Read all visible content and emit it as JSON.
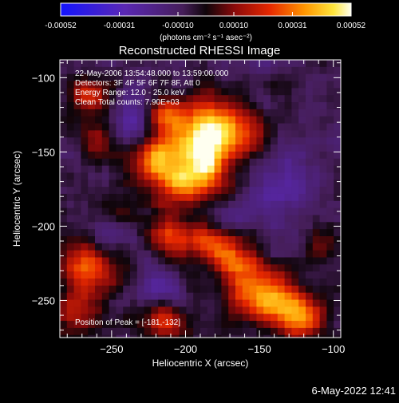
{
  "chart_data": {
    "type": "heatmap",
    "title": "Reconstructed RHESSI Image",
    "xlabel": "Heliocentric X (arcsec)",
    "ylabel": "Heliocentric Y (arcsec)",
    "xlim": [
      -285,
      -95
    ],
    "ylim": [
      -275,
      -88
    ],
    "x_ticks": [
      -250,
      -200,
      -150,
      -100
    ],
    "y_ticks": [
      -100,
      -150,
      -200,
      -250
    ],
    "colorbar": {
      "ticks": [
        "-0.00052",
        "-0.00031",
        "-0.00010",
        "0.00010",
        "0.00031",
        "0.00052"
      ],
      "range": [
        -0.00052,
        0.00052
      ],
      "unit_label": "(photons cm⁻² s⁻¹ asec⁻²)"
    },
    "annotations": [
      "22-May-2006 13:54:48.000 to 13:59:00.000",
      "Detectors: 3F 4F 5F 6F 7F 8F, Att 0",
      "Energy Range: 12.0 - 25.0 keV",
      "Clean     Total counts: 7.90E+03"
    ],
    "peak_label": "Position of Peak = [-181,-132]",
    "peak": {
      "x": -181,
      "y": -132
    },
    "sources": [
      {
        "x": -181,
        "y": -132,
        "sx": 14,
        "sy": 12,
        "amp": 1.0
      },
      {
        "x": -212,
        "y": -127,
        "sx": 10,
        "sy": 9,
        "amp": 0.75
      },
      {
        "x": -195,
        "y": -148,
        "sx": 16,
        "sy": 9,
        "amp": 0.55
      },
      {
        "x": -222,
        "y": -153,
        "sx": 10,
        "sy": 10,
        "amp": 0.6
      },
      {
        "x": -200,
        "y": -170,
        "sx": 16,
        "sy": 11,
        "amp": 0.8
      },
      {
        "x": -185,
        "y": -158,
        "sx": 10,
        "sy": 9,
        "amp": 0.55
      },
      {
        "x": -158,
        "y": -140,
        "sx": 9,
        "sy": 9,
        "amp": 0.4
      },
      {
        "x": -265,
        "y": -112,
        "sx": 10,
        "sy": 10,
        "amp": 0.45
      },
      {
        "x": -257,
        "y": -143,
        "sx": 9,
        "sy": 9,
        "amp": 0.38
      },
      {
        "x": -210,
        "y": -208,
        "sx": 9,
        "sy": 9,
        "amp": 0.5
      },
      {
        "x": -182,
        "y": -212,
        "sx": 12,
        "sy": 10,
        "amp": 0.6
      },
      {
        "x": -165,
        "y": -225,
        "sx": 10,
        "sy": 9,
        "amp": 0.5
      },
      {
        "x": -150,
        "y": -245,
        "sx": 14,
        "sy": 12,
        "amp": 0.85
      },
      {
        "x": -128,
        "y": -257,
        "sx": 10,
        "sy": 10,
        "amp": 0.65
      },
      {
        "x": -265,
        "y": -228,
        "sx": 12,
        "sy": 13,
        "amp": 0.7
      },
      {
        "x": -275,
        "y": -258,
        "sx": 9,
        "sy": 10,
        "amp": 0.45
      },
      {
        "x": -215,
        "y": -262,
        "sx": 13,
        "sy": 9,
        "amp": 0.55
      },
      {
        "x": -245,
        "y": -195,
        "sx": 10,
        "sy": 8,
        "amp": 0.3
      },
      {
        "x": -110,
        "y": -210,
        "sx": 9,
        "sy": 9,
        "amp": 0.3
      },
      {
        "x": -115,
        "y": -262,
        "sx": 8,
        "sy": 8,
        "amp": 0.4
      }
    ],
    "negatives": [
      {
        "x": -235,
        "y": -130,
        "sx": 12,
        "sy": 14,
        "amp": 0.4
      },
      {
        "x": -130,
        "y": -175,
        "sx": 18,
        "sy": 18,
        "amp": 0.35
      },
      {
        "x": -215,
        "y": -245,
        "sx": 10,
        "sy": 10,
        "amp": 0.4
      },
      {
        "x": -250,
        "y": -205,
        "sx": 10,
        "sy": 10,
        "amp": 0.3
      },
      {
        "x": -170,
        "y": -195,
        "sx": 10,
        "sy": 8,
        "amp": 0.25
      }
    ]
  },
  "footer": {
    "timestamp": "6-May-2022 12:41"
  }
}
